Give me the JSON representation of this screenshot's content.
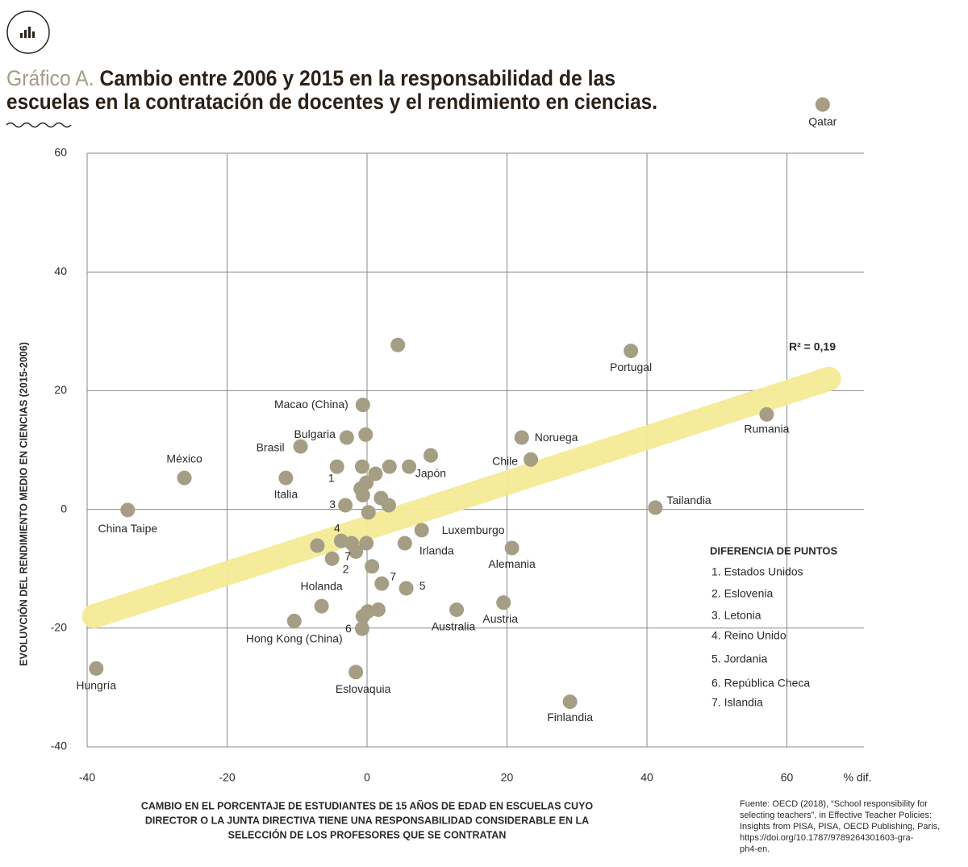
{
  "chart_data": {
    "type": "scatter",
    "title_prefix": "Gráfico A.",
    "title_lines": [
      "Cambio entre 2006 y 2015 en la responsabilidad de las",
      "escuelas en la contratación de docentes y el rendimiento en ciencias."
    ],
    "x_label_lines": [
      "CAMBIO EN EL PORCENTAJE DE ESTUDIANTES DE 15 AÑOS DE EDAD EN ESCUELAS CUYO",
      "DIRECTOR O LA JUNTA DIRECTIVA TIENE UNA RESPONSABILIDAD CONSIDERABLE EN LA",
      "SELECCIÓN DE LOS PROFESORES QUE SE CONTRATAN"
    ],
    "x_unit": "% dif.",
    "y_label": "EVOLUVCIÓN DEL RENDIMIENTO MEDIO EN CIENCIAS (2015-2006)",
    "xlim": [
      -40,
      71
    ],
    "xticks": [
      -40,
      -20,
      0,
      20,
      40,
      60
    ],
    "ylim": [
      -40,
      60
    ],
    "yticks": [
      -40,
      -20,
      0,
      20,
      40,
      60
    ],
    "grid": true,
    "color": "#a59d84",
    "x": [
      65.1,
      4.4,
      37.7,
      57.1,
      -0.6,
      -2.9,
      -0.2,
      -9.5,
      22.1,
      23.4,
      9.1,
      6.0,
      3.2,
      -0.7,
      -4.3,
      1.2,
      -26.1,
      -11.6,
      -0.1,
      -0.9,
      2.0,
      -0.6,
      -3.1,
      3.1,
      0.2,
      -34.2,
      41.2,
      7.8,
      5.4,
      20.7,
      -7.1,
      -3.7,
      -2.2,
      -0.1,
      -1.6,
      -5.0,
      0.7,
      2.1,
      5.6,
      -6.5,
      0.1,
      1.6,
      -0.6,
      -0.7,
      12.8,
      19.5,
      -10.4,
      -38.7,
      -1.6,
      29.0
    ],
    "values": [
      68.2,
      27.7,
      26.7,
      16.0,
      17.6,
      12.1,
      12.6,
      10.6,
      12.1,
      8.4,
      9.1,
      7.2,
      7.2,
      7.2,
      7.2,
      6.0,
      5.3,
      5.3,
      4.5,
      3.5,
      1.9,
      2.4,
      0.7,
      0.7,
      -0.5,
      -0.1,
      0.3,
      -3.5,
      -5.7,
      -6.5,
      -6.1,
      -5.3,
      -5.7,
      -5.7,
      -7.1,
      -8.3,
      -9.6,
      -12.5,
      -13.3,
      -16.3,
      -17.2,
      -16.9,
      -18.0,
      -20.1,
      -16.9,
      -15.7,
      -18.8,
      -26.8,
      -27.4,
      -32.4
    ],
    "point_labels": [
      "Qatar",
      null,
      "Portugal",
      "Rumania",
      "Macao (China)",
      "Bulgaria",
      null,
      "Brasil",
      "Noruega",
      "Chile",
      "Japón",
      null,
      null,
      null,
      "1",
      null,
      "México",
      "Italia",
      null,
      null,
      null,
      null,
      "3",
      null,
      null,
      "China Taipe",
      "Tailandia",
      "Luxemburgo",
      "Irlanda",
      "Alemania",
      null,
      "4",
      null,
      null,
      "7",
      "2",
      null,
      "7",
      "5",
      "Holanda",
      null,
      null,
      null,
      "6",
      "Australia",
      "Austria",
      "Hong Kong (China)",
      "Hungría",
      "Eslovaquia",
      "Finlandia"
    ],
    "trendline": {
      "x": [
        -39,
        66
      ],
      "y": [
        -18,
        22
      ],
      "color": "#f4ec96",
      "label": "R² = 0,19"
    },
    "legend": {
      "title": "DIFERENCIA DE PUNTOS",
      "items": [
        "1. Estados Unidos",
        "2. Eslovenia",
        "3. Letonia",
        "4. Reino Unido",
        "5. Jordania",
        "6. República Checa",
        "7. Islandia"
      ]
    },
    "source_lines": [
      "Fuente: OECD (2018), “School responsibility for",
      "selecting teachers”, in Effective Teacher Policies:",
      "Insights from PISA, PISA, OECD Publishing, Paris,",
      "https://doi.org/10.1787/9789264301603-gra-",
      "ph4-en."
    ]
  }
}
